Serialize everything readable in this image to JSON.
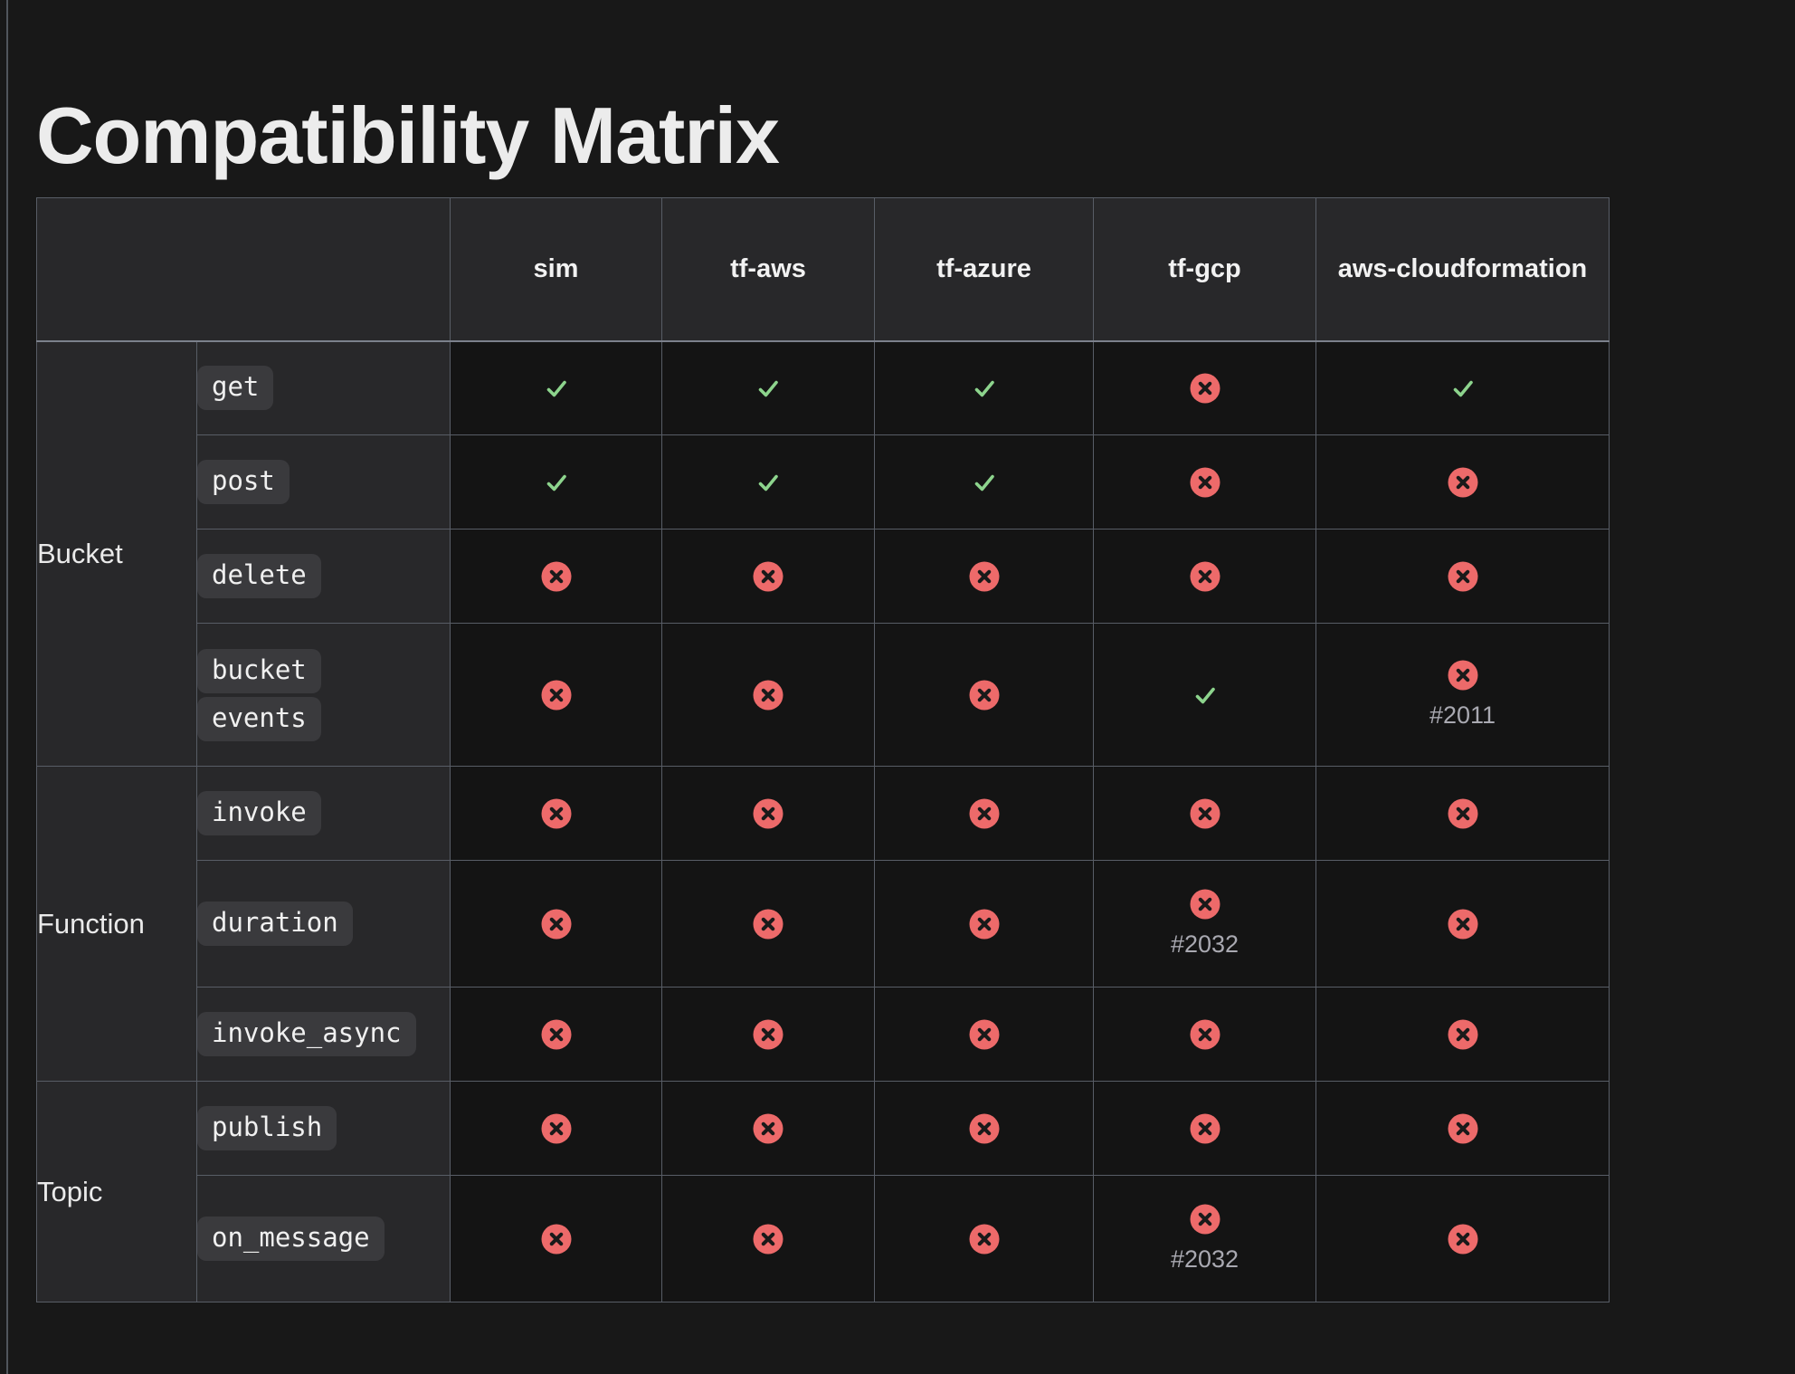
{
  "page": {
    "title": "Compatibility Matrix"
  },
  "colors": {
    "check": "#8dd48d",
    "cross_bg": "#ed6a6a",
    "cross_glyph": "#1a1a1a",
    "issue_link": "#a9a9b1"
  },
  "icons": {
    "yes": "check-icon",
    "no": "cross-circle-icon"
  },
  "table": {
    "columns": [
      "sim",
      "tf-aws",
      "tf-azure",
      "tf-gcp",
      "aws-cloudformation"
    ],
    "groups": [
      {
        "name": "Bucket",
        "rows": [
          {
            "method": [
              "get"
            ],
            "cells": [
              {
                "status": "yes"
              },
              {
                "status": "yes"
              },
              {
                "status": "yes"
              },
              {
                "status": "no"
              },
              {
                "status": "yes"
              }
            ]
          },
          {
            "method": [
              "post"
            ],
            "cells": [
              {
                "status": "yes"
              },
              {
                "status": "yes"
              },
              {
                "status": "yes"
              },
              {
                "status": "no"
              },
              {
                "status": "no"
              }
            ]
          },
          {
            "method": [
              "delete"
            ],
            "cells": [
              {
                "status": "no"
              },
              {
                "status": "no"
              },
              {
                "status": "no"
              },
              {
                "status": "no"
              },
              {
                "status": "no"
              }
            ]
          },
          {
            "method": [
              "bucket",
              "events"
            ],
            "cells": [
              {
                "status": "no"
              },
              {
                "status": "no"
              },
              {
                "status": "no"
              },
              {
                "status": "yes"
              },
              {
                "status": "no",
                "issue": "#2011"
              }
            ]
          }
        ]
      },
      {
        "name": "Function",
        "rows": [
          {
            "method": [
              "invoke"
            ],
            "cells": [
              {
                "status": "no"
              },
              {
                "status": "no"
              },
              {
                "status": "no"
              },
              {
                "status": "no"
              },
              {
                "status": "no"
              }
            ]
          },
          {
            "method": [
              "duration"
            ],
            "cells": [
              {
                "status": "no"
              },
              {
                "status": "no"
              },
              {
                "status": "no"
              },
              {
                "status": "no",
                "issue": "#2032"
              },
              {
                "status": "no"
              }
            ]
          },
          {
            "method": [
              "invoke_async"
            ],
            "cells": [
              {
                "status": "no"
              },
              {
                "status": "no"
              },
              {
                "status": "no"
              },
              {
                "status": "no"
              },
              {
                "status": "no"
              }
            ]
          }
        ]
      },
      {
        "name": "Topic",
        "rows": [
          {
            "method": [
              "publish"
            ],
            "cells": [
              {
                "status": "no"
              },
              {
                "status": "no"
              },
              {
                "status": "no"
              },
              {
                "status": "no"
              },
              {
                "status": "no"
              }
            ]
          },
          {
            "method": [
              "on_message"
            ],
            "cells": [
              {
                "status": "no"
              },
              {
                "status": "no"
              },
              {
                "status": "no"
              },
              {
                "status": "no",
                "issue": "#2032"
              },
              {
                "status": "no"
              }
            ]
          }
        ]
      }
    ]
  }
}
